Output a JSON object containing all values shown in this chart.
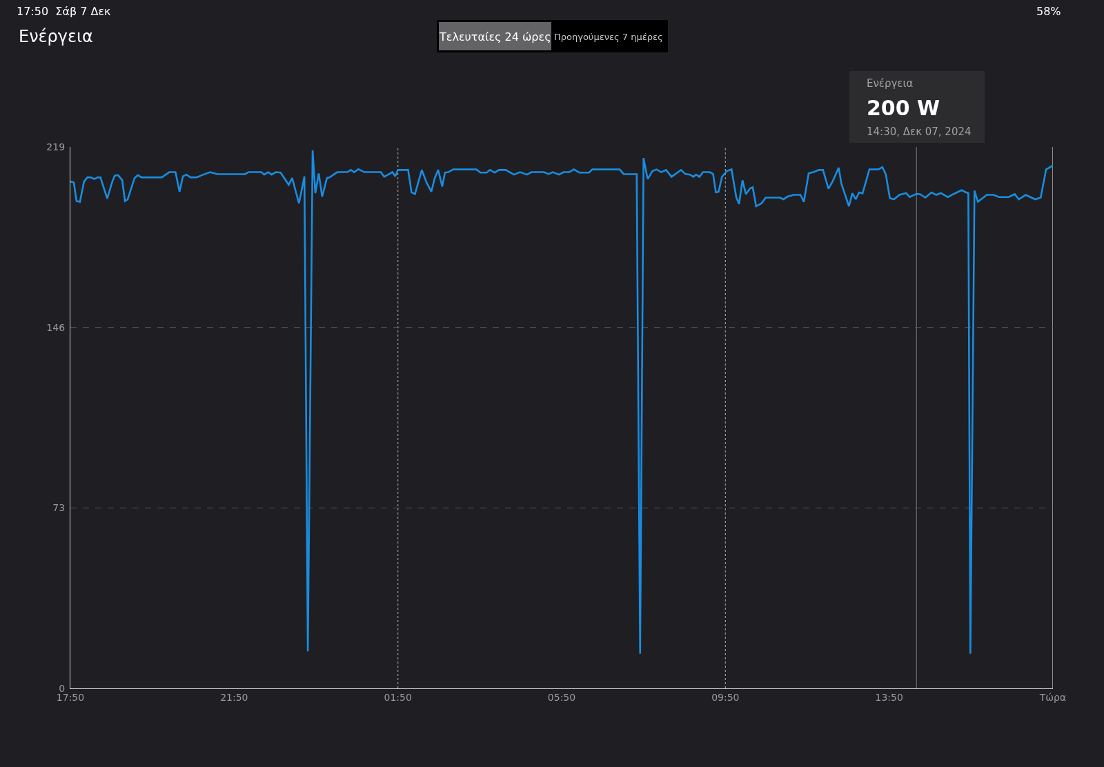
{
  "chart_data": {
    "type": "line",
    "title": "Ενέργεια",
    "x": [
      "2024-12-06T17:50",
      "2024-12-06T17:55",
      "2024-12-06T17:59",
      "2024-12-06T18:04",
      "2024-12-06T18:10",
      "2024-12-06T18:15",
      "2024-12-06T18:20",
      "2024-12-06T18:25",
      "2024-12-06T18:30",
      "2024-12-06T18:34",
      "2024-12-06T18:44",
      "2024-12-06T18:51",
      "2024-12-06T18:55",
      "2024-12-06T19:00",
      "2024-12-06T19:06",
      "2024-12-06T19:10",
      "2024-12-06T19:14",
      "2024-12-06T19:24",
      "2024-12-06T19:29",
      "2024-12-06T19:34",
      "2024-12-06T20:04",
      "2024-12-06T20:15",
      "2024-12-06T20:24",
      "2024-12-06T20:30",
      "2024-12-06T20:35",
      "2024-12-06T20:40",
      "2024-12-06T20:46",
      "2024-12-06T20:55",
      "2024-12-06T21:05",
      "2024-12-06T21:15",
      "2024-12-06T21:25",
      "2024-12-06T22:06",
      "2024-12-06T22:11",
      "2024-12-06T22:30",
      "2024-12-06T22:34",
      "2024-12-06T22:40",
      "2024-12-06T22:45",
      "2024-12-06T22:51",
      "2024-12-06T22:58",
      "2024-12-06T23:10",
      "2024-12-06T23:15",
      "2024-12-06T23:25",
      "2024-12-06T23:33",
      "2024-12-06T23:38",
      "2024-12-06T23:45",
      "2024-12-06T23:49",
      "2024-12-06T23:54",
      "2024-12-06T23:59",
      "2024-12-07T00:06",
      "2024-12-07T00:10",
      "2024-12-07T00:21",
      "2024-12-07T00:36",
      "2024-12-07T00:41",
      "2024-12-07T00:46",
      "2024-12-07T00:52",
      "2024-12-07T01:01",
      "2024-12-07T01:25",
      "2024-12-07T01:30",
      "2024-12-07T01:42",
      "2024-12-07T01:46",
      "2024-12-07T01:50",
      "2024-12-07T02:05",
      "2024-12-07T02:10",
      "2024-12-07T02:15",
      "2024-12-07T02:25",
      "2024-12-07T02:32",
      "2024-12-07T02:39",
      "2024-12-07T02:44",
      "2024-12-07T02:49",
      "2024-12-07T02:55",
      "2024-12-07T02:59",
      "2024-12-07T03:04",
      "2024-12-07T03:11",
      "2024-12-07T03:45",
      "2024-12-07T03:51",
      "2024-12-07T04:00",
      "2024-12-07T04:05",
      "2024-12-07T04:12",
      "2024-12-07T04:18",
      "2024-12-07T04:28",
      "2024-12-07T04:40",
      "2024-12-07T04:49",
      "2024-12-07T04:59",
      "2024-12-07T05:06",
      "2024-12-07T05:24",
      "2024-12-07T05:31",
      "2024-12-07T05:37",
      "2024-12-07T05:46",
      "2024-12-07T05:53",
      "2024-12-07T06:01",
      "2024-12-07T06:08",
      "2024-12-07T06:16",
      "2024-12-07T06:30",
      "2024-12-07T06:35",
      "2024-12-07T07:15",
      "2024-12-07T07:21",
      "2024-12-07T07:40",
      "2024-12-07T07:45",
      "2024-12-07T07:50",
      "2024-12-07T07:56",
      "2024-12-07T08:03",
      "2024-12-07T08:09",
      "2024-12-07T08:16",
      "2024-12-07T08:23",
      "2024-12-07T08:31",
      "2024-12-07T08:45",
      "2024-12-07T08:51",
      "2024-12-07T08:58",
      "2024-12-07T09:03",
      "2024-12-07T09:07",
      "2024-12-07T09:12",
      "2024-12-07T09:17",
      "2024-12-07T09:27",
      "2024-12-07T09:32",
      "2024-12-07T09:36",
      "2024-12-07T09:40",
      "2024-12-07T09:45",
      "2024-12-07T09:52",
      "2024-12-07T09:59",
      "2024-12-07T10:02",
      "2024-12-07T10:06",
      "2024-12-07T10:10",
      "2024-12-07T10:15",
      "2024-12-07T10:20",
      "2024-12-07T10:26",
      "2024-12-07T10:30",
      "2024-12-07T10:35",
      "2024-12-07T10:43",
      "2024-12-07T10:49",
      "2024-12-07T11:10",
      "2024-12-07T11:15",
      "2024-12-07T11:21",
      "2024-12-07T11:30",
      "2024-12-07T11:40",
      "2024-12-07T11:45",
      "2024-12-07T11:52",
      "2024-12-07T12:00",
      "2024-12-07T12:07",
      "2024-12-07T12:13",
      "2024-12-07T12:21",
      "2024-12-07T12:27",
      "2024-12-07T12:36",
      "2024-12-07T12:40",
      "2024-12-07T12:51",
      "2024-12-07T12:56",
      "2024-12-07T13:01",
      "2024-12-07T13:06",
      "2024-12-07T13:11",
      "2024-12-07T13:21",
      "2024-12-07T13:34",
      "2024-12-07T13:40",
      "2024-12-07T13:45",
      "2024-12-07T13:51",
      "2024-12-07T13:57",
      "2024-12-07T14:05",
      "2024-12-07T14:15",
      "2024-12-07T14:20",
      "2024-12-07T14:30",
      "2024-12-07T14:35",
      "2024-12-07T14:43",
      "2024-12-07T14:52",
      "2024-12-07T14:59",
      "2024-12-07T15:06",
      "2024-12-07T15:16",
      "2024-12-07T15:24",
      "2024-12-07T15:36",
      "2024-12-07T15:43",
      "2024-12-07T15:46",
      "2024-12-07T15:49",
      "2024-12-07T15:55",
      "2024-12-07T16:00",
      "2024-12-07T16:13",
      "2024-12-07T16:23",
      "2024-12-07T16:31",
      "2024-12-07T16:45",
      "2024-12-07T16:54",
      "2024-12-07T17:00",
      "2024-12-07T17:10",
      "2024-12-07T17:24",
      "2024-12-07T17:32",
      "2024-12-07T17:40",
      "2024-12-07T17:50"
    ],
    "series": [
      {
        "color": "#1a8ce0",
        "values": [
          205.0,
          204.6,
          197.1,
          196.8,
          205.0,
          206.7,
          206.7,
          206.0,
          206.7,
          206.7,
          198.1,
          204.6,
          207.4,
          207.6,
          205.5,
          197.1,
          197.8,
          206.4,
          207.6,
          206.7,
          206.7,
          208.8,
          208.8,
          200.9,
          207.1,
          207.8,
          206.7,
          206.7,
          207.8,
          208.8,
          208.0,
          208.0,
          208.8,
          208.8,
          207.8,
          208.8,
          207.8,
          208.8,
          208.6,
          203.7,
          206.4,
          196.2,
          207.1,
          15,
          217.6,
          200.3,
          208.3,
          198.9,
          206.4,
          206.7,
          208.8,
          208.8,
          209.7,
          208.8,
          210.0,
          208.8,
          208.8,
          206.9,
          208.8,
          207.1,
          209.7,
          209.7,
          200.6,
          199.9,
          209.7,
          204.6,
          200.9,
          206.4,
          209.7,
          203.0,
          208.6,
          208.8,
          209.9,
          209.9,
          208.6,
          208.6,
          209.7,
          208.6,
          209.7,
          209.7,
          207.8,
          208.8,
          207.8,
          208.8,
          208.8,
          208.0,
          208.8,
          207.8,
          208.8,
          208.8,
          209.9,
          208.6,
          208.6,
          209.9,
          209.9,
          208.0,
          208.0,
          14,
          214.5,
          206.0,
          209.2,
          209.9,
          208.8,
          209.7,
          206.9,
          209.7,
          208.1,
          207.8,
          206.9,
          207.8,
          206.9,
          208.8,
          208.8,
          208.0,
          200.6,
          200.9,
          206.9,
          209.2,
          209.9,
          205.0,
          198.5,
          195.9,
          205.5,
          199.9,
          202.2,
          202.7,
          195.0,
          196.2,
          198.5,
          198.5,
          197.8,
          198.9,
          199.6,
          199.6,
          196.8,
          208.3,
          208.9,
          209.7,
          209.7,
          202.1,
          205.0,
          210.6,
          204.1,
          195.0,
          200.3,
          197.8,
          200.6,
          200.2,
          209.9,
          209.9,
          210.8,
          208.0,
          198.3,
          197.8,
          199.6,
          200.3,
          198.7,
          200.0,
          199.9,
          198.5,
          200.6,
          199.6,
          200.3,
          198.7,
          199.9,
          201.5,
          200.6,
          200.3,
          14,
          201.3,
          196.8,
          199.6,
          199.6,
          198.7,
          198.7,
          199.9,
          197.8,
          199.6,
          197.8,
          198.5,
          209.9,
          211.5
        ]
      }
    ],
    "xlim": [
      "2024-12-06T17:50",
      "2024-12-07T17:50"
    ],
    "ylim": [
      0,
      219
    ],
    "xticks": [
      {
        "value": "2024-12-06T17:50",
        "label": "17:50"
      },
      {
        "value": "2024-12-06T21:50",
        "label": "21:50"
      },
      {
        "value": "2024-12-07T01:50",
        "label": "01:50"
      },
      {
        "value": "2024-12-07T05:50",
        "label": "05:50"
      },
      {
        "value": "2024-12-07T09:50",
        "label": "09:50"
      },
      {
        "value": "2024-12-07T13:50",
        "label": "13:50"
      },
      {
        "value": "2024-12-07T17:50",
        "label": "Τώρα"
      }
    ],
    "yticks": [
      0,
      73,
      146,
      219
    ],
    "grid": "y",
    "marker": "none",
    "line_style": "solid",
    "ref_lines": [
      {
        "axis": "x",
        "value": "2024-12-07T01:50",
        "label": null,
        "color": "#9a9a9a",
        "line_style": "dotted"
      },
      {
        "axis": "x",
        "value": "2024-12-07T09:50",
        "label": null,
        "color": "#9a9a9a",
        "line_style": "dotted"
      },
      {
        "axis": "x",
        "value": "2024-12-07T14:30",
        "label": null,
        "color": "#6e6e72",
        "line_style": "solid"
      }
    ],
    "annotations": [
      "17:50  Σάβ 7 Δεκ",
      "58%",
      "Τελευταίες 24 ώρες",
      "Προηγούμενες 7 ημέρες",
      "Ενέργεια",
      "200 W",
      "14:30, Δεκ 07, 2024"
    ]
  }
}
